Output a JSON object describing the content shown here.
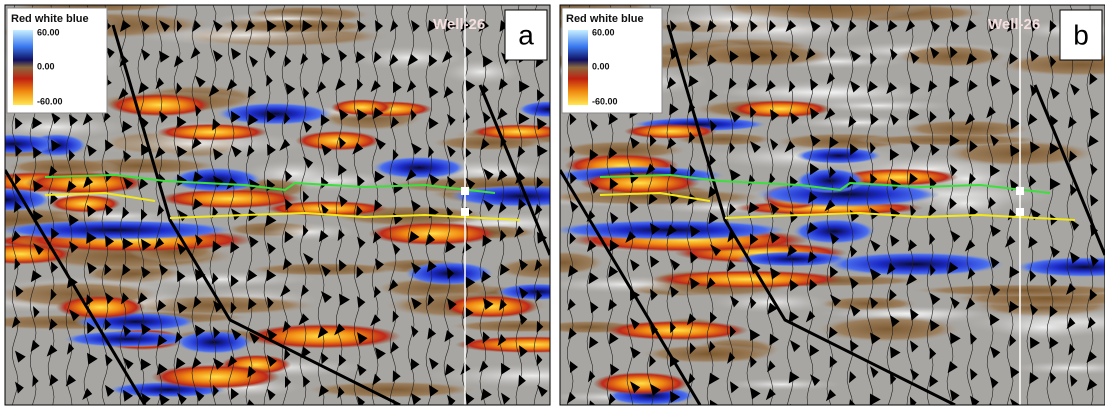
{
  "panels": [
    {
      "label": "a",
      "legend": {
        "title": "Red white blue",
        "ticks": [
          "60.00",
          "0.00",
          "-60.00"
        ]
      },
      "well": "Well-26"
    },
    {
      "label": "b",
      "legend": {
        "title": "Red white blue",
        "ticks": [
          "60.00",
          "0.00",
          "-60.00"
        ]
      },
      "well": "Well-26"
    }
  ]
}
